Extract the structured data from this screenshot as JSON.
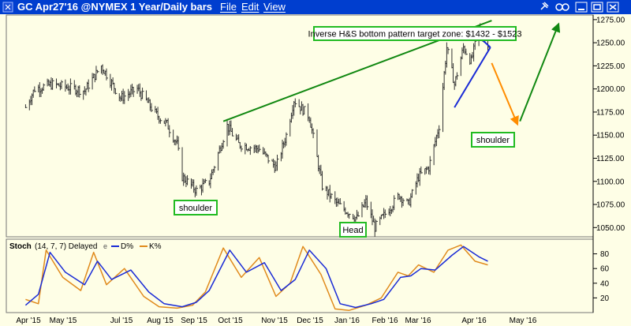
{
  "window": {
    "title": "GC Apr27'16 @NYMEX  1 Year/Daily bars",
    "menu": [
      "File",
      "Edit",
      "View"
    ],
    "icons": [
      "pin-icon",
      "link-icon",
      "minimize-icon",
      "maximize-icon",
      "close-icon"
    ]
  },
  "colors": {
    "titlebar": "#003ecf",
    "background": "#fefee6",
    "price_bars": "#333333",
    "green_lines": "#118811",
    "triangle": "#1a2bd6",
    "orange_arrow": "#ff8c00",
    "d_line": "#1a2bd6",
    "k_line": "#e08a1c",
    "box_border": "#22bb22"
  },
  "chart_data": [
    {
      "type": "ohlc",
      "title": "GC Apr27'16 @NYMEX  1 Year/Daily bars",
      "ylim": [
        1040,
        1280
      ],
      "y_ticks": [
        1050,
        1075,
        1100,
        1125,
        1150,
        1175,
        1200,
        1225,
        1250,
        1275
      ],
      "y_tick_labels": [
        "1050.00",
        "1075.00",
        "1100.00",
        "1125.00",
        "1150.00",
        "1175.00",
        "1200.00",
        "1225.00",
        "1250.00",
        "1275.00"
      ],
      "x_ticks": [
        "Apr '15",
        "May '15",
        "Jul '15",
        "Aug '15",
        "Sep '15",
        "Oct '15",
        "Nov '15",
        "Dec '15",
        "Jan '16",
        "Feb '16",
        "Mar '16",
        "Apr '16",
        "May '16"
      ],
      "price_path": [
        {
          "date": "2015-03-20",
          "close": 1180
        },
        {
          "date": "2015-03-27",
          "close": 1200
        },
        {
          "date": "2015-04-10",
          "close": 1205
        },
        {
          "date": "2015-05-05",
          "close": 1198
        },
        {
          "date": "2015-05-18",
          "close": 1225
        },
        {
          "date": "2015-06-02",
          "close": 1190
        },
        {
          "date": "2015-06-15",
          "close": 1200
        },
        {
          "date": "2015-06-30",
          "close": 1172
        },
        {
          "date": "2015-07-08",
          "close": 1162
        },
        {
          "date": "2015-07-16",
          "close": 1140
        },
        {
          "date": "2015-07-20",
          "close": 1105
        },
        {
          "date": "2015-07-31",
          "close": 1090
        },
        {
          "date": "2015-08-10",
          "close": 1100
        },
        {
          "date": "2015-08-24",
          "close": 1160
        },
        {
          "date": "2015-09-02",
          "close": 1140
        },
        {
          "date": "2015-09-18",
          "close": 1135
        },
        {
          "date": "2015-10-01",
          "close": 1115
        },
        {
          "date": "2015-10-09",
          "close": 1150
        },
        {
          "date": "2015-10-15",
          "close": 1188
        },
        {
          "date": "2015-10-27",
          "close": 1170
        },
        {
          "date": "2015-11-06",
          "close": 1095
        },
        {
          "date": "2015-11-18",
          "close": 1075
        },
        {
          "date": "2015-12-03",
          "close": 1060
        },
        {
          "date": "2015-12-10",
          "close": 1078
        },
        {
          "date": "2015-12-17",
          "close": 1050
        },
        {
          "date": "2016-01-05",
          "close": 1085
        },
        {
          "date": "2016-01-12",
          "close": 1075
        },
        {
          "date": "2016-01-20",
          "close": 1105
        },
        {
          "date": "2016-01-28",
          "close": 1115
        },
        {
          "date": "2016-02-05",
          "close": 1160
        },
        {
          "date": "2016-02-11",
          "close": 1245
        },
        {
          "date": "2016-02-17",
          "close": 1205
        },
        {
          "date": "2016-02-24",
          "close": 1245
        },
        {
          "date": "2016-03-01",
          "close": 1230
        },
        {
          "date": "2016-03-07",
          "close": 1265
        },
        {
          "date": "2016-03-14",
          "close": 1245
        }
      ],
      "annotations": [
        {
          "name": "target-box",
          "text": "Inverse H&S bottom pattern target zone: $1432 - $1523"
        },
        {
          "name": "left-shoulder-label",
          "text": "shoulder"
        },
        {
          "name": "head-label",
          "text": "Head"
        },
        {
          "name": "right-shoulder-label",
          "text": "shoulder"
        }
      ],
      "drawings": [
        {
          "name": "green-neckline",
          "color": "#118811",
          "from": {
            "date": "2015-08-21",
            "value": 1165
          },
          "to": {
            "date": "2016-03-17",
            "value": 1274
          }
        },
        {
          "name": "blue-triangle-upper",
          "color": "#1a2bd6",
          "from": {
            "date": "2016-03-02",
            "value": 1263
          },
          "to": {
            "date": "2016-03-16",
            "value": 1245
          }
        },
        {
          "name": "blue-triangle-lower",
          "color": "#1a2bd6",
          "from": {
            "date": "2016-02-17",
            "value": 1180
          },
          "to": {
            "date": "2016-03-16",
            "value": 1245
          }
        },
        {
          "name": "orange-down-arrow",
          "color": "#ff8c00",
          "from": {
            "date": "2016-03-17",
            "value": 1228
          },
          "to": {
            "date": "2016-04-06",
            "value": 1162
          }
        },
        {
          "name": "green-up-arrow",
          "color": "#118811",
          "from": {
            "date": "2016-04-08",
            "value": 1165
          },
          "to": {
            "date": "2016-05-08",
            "value": 1270
          }
        }
      ]
    },
    {
      "type": "line",
      "title": "Stoch",
      "params": "(14, 7, 7) Delayed",
      "legend": [
        {
          "name": "D%",
          "color": "#1a2bd6"
        },
        {
          "name": "K%",
          "color": "#e08a1c"
        }
      ],
      "ylim": [
        0,
        100
      ],
      "y_ticks": [
        20,
        40,
        60,
        80
      ],
      "series": [
        {
          "name": "D%",
          "x": [
            "2015-03-20",
            "2015-03-30",
            "2015-04-08",
            "2015-04-20",
            "2015-05-05",
            "2015-05-15",
            "2015-05-26",
            "2015-06-10",
            "2015-06-24",
            "2015-07-06",
            "2015-07-20",
            "2015-07-31",
            "2015-08-10",
            "2015-08-26",
            "2015-09-08",
            "2015-09-22",
            "2015-10-05",
            "2015-10-16",
            "2015-10-27",
            "2015-11-09",
            "2015-11-20",
            "2015-12-02",
            "2015-12-14",
            "2015-12-24",
            "2016-01-06",
            "2016-01-14",
            "2016-01-22",
            "2016-02-02",
            "2016-02-15",
            "2016-02-24",
            "2016-03-07",
            "2016-03-14"
          ],
          "values": [
            10,
            25,
            82,
            55,
            38,
            70,
            45,
            58,
            28,
            12,
            8,
            14,
            30,
            85,
            55,
            68,
            30,
            45,
            85,
            60,
            12,
            7,
            12,
            18,
            48,
            50,
            60,
            58,
            78,
            90,
            76,
            70
          ]
        },
        {
          "name": "K%",
          "x": [
            "2015-03-20",
            "2015-03-30",
            "2015-04-05",
            "2015-04-18",
            "2015-05-02",
            "2015-05-12",
            "2015-05-22",
            "2015-06-05",
            "2015-06-20",
            "2015-07-02",
            "2015-07-16",
            "2015-07-28",
            "2015-08-07",
            "2015-08-21",
            "2015-09-04",
            "2015-09-18",
            "2015-10-01",
            "2015-10-12",
            "2015-10-22",
            "2015-11-05",
            "2015-11-16",
            "2015-11-27",
            "2015-12-10",
            "2015-12-22",
            "2016-01-04",
            "2016-01-12",
            "2016-01-20",
            "2016-02-01",
            "2016-02-12",
            "2016-02-22",
            "2016-03-04",
            "2016-03-14"
          ],
          "values": [
            18,
            12,
            85,
            48,
            30,
            82,
            38,
            60,
            22,
            8,
            6,
            10,
            28,
            88,
            48,
            75,
            22,
            40,
            90,
            52,
            5,
            3,
            10,
            20,
            55,
            50,
            65,
            55,
            85,
            92,
            70,
            65
          ]
        }
      ]
    }
  ]
}
